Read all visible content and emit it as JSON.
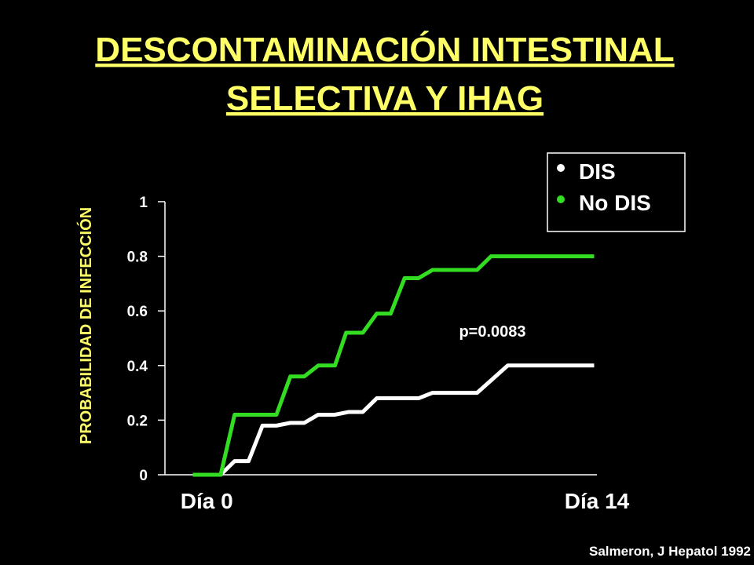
{
  "chart_data": {
    "type": "line",
    "title": [
      "DESCONTAMINACIÓN INTESTINAL",
      "SELECTIVA Y IHAG"
    ],
    "y_label": "PROBABILIDAD DE INFECCIÓN",
    "annotation": "p=0.0083",
    "source": "Salmeron, J Hepatol 1992",
    "xlim": [
      -1.5,
      14
    ],
    "xticks": [
      {
        "value": 0,
        "label": "Día 0"
      },
      {
        "value": 14,
        "label": "Día 14"
      }
    ],
    "ylim": [
      0,
      1
    ],
    "yticks": [
      0,
      0.2,
      0.4,
      0.6,
      0.8,
      1
    ],
    "legend": "top-right",
    "series": [
      {
        "name": "DIS",
        "color": "#ffffff",
        "x": [
          -0.5,
          0.5,
          1.0,
          1.5,
          2.0,
          2.5,
          3.0,
          3.5,
          4.0,
          4.6,
          5.1,
          5.6,
          6.1,
          7.6,
          8.1,
          9.7,
          10.8,
          13.9
        ],
        "values": [
          0,
          0,
          0.05,
          0.05,
          0.18,
          0.18,
          0.19,
          0.19,
          0.22,
          0.22,
          0.23,
          0.23,
          0.28,
          0.28,
          0.3,
          0.3,
          0.4,
          0.4
        ]
      },
      {
        "name": "No DIS",
        "color": "#33dd22",
        "x": [
          -0.5,
          0.5,
          1.0,
          2.5,
          3.0,
          3.5,
          4.0,
          4.6,
          5.0,
          5.6,
          6.1,
          6.6,
          7.1,
          7.6,
          8.1,
          9.7,
          10.2,
          13.9
        ],
        "values": [
          0,
          0,
          0.22,
          0.22,
          0.36,
          0.36,
          0.4,
          0.4,
          0.52,
          0.52,
          0.59,
          0.59,
          0.72,
          0.72,
          0.75,
          0.75,
          0.8,
          0.8
        ]
      }
    ]
  }
}
